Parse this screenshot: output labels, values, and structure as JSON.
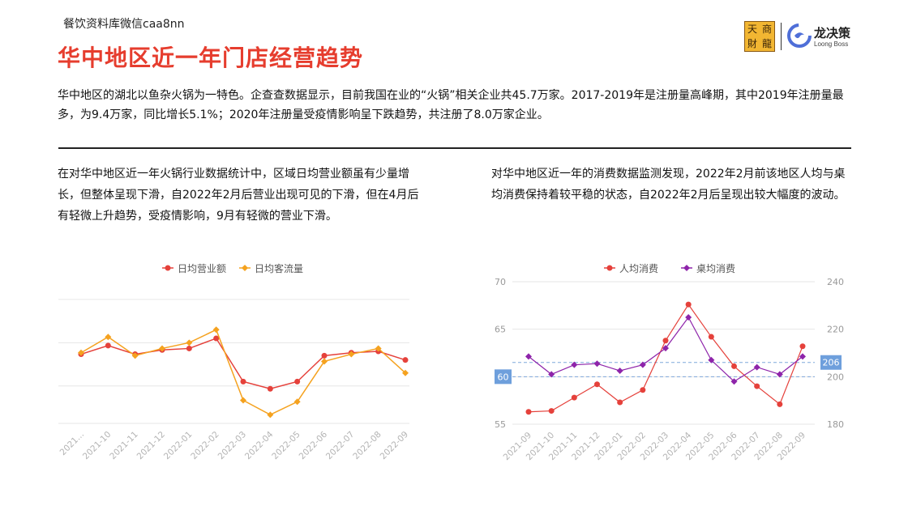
{
  "watermark": "餐饮资料库微信caa8nn",
  "title": "华中地区近一年门店经营趋势",
  "intro": "华中地区的湖北以鱼杂火锅为一特色。企查查数据显示，目前我国在业的“火锅”相关企业共45.7万家。2017-2019年是注册量高峰期，其中2019年注册量最多，为9.4万家，同比增长5.1%；2020年注册量受疫情影响呈下跌趋势，共注册了8.0万家企业。",
  "left_text": "在对华中地区近一年火锅行业数据统计中，区域日均营业额虽有少量增长，但整体呈现下滑，自2022年2月后营业出现可见的下滑，但在4月后有轻微上升趋势，受疫情影响，9月有轻微的营业下滑。",
  "right_text": "对华中地区近一年的消费数据监测发现，2022年2月前该地区人均与桌均消费保持着较平稳的状态，自2022年2月后呈现出较大幅度的波动。",
  "logo": {
    "chars": [
      "天",
      "商",
      "財",
      "龍"
    ],
    "name": "龙决策",
    "sub": "Loong Boss",
    "dragon_icon": "dragon-icon"
  },
  "colors": {
    "title": "#e63d2e",
    "series_red": "#e5413b",
    "series_orange": "#f5a21f",
    "series_purple": "#8e24aa",
    "grid": "#e6e6e6",
    "marker_line": "#7fa8dc",
    "marker_label_bg": "#6e9fdc"
  },
  "chart_data": [
    {
      "type": "line",
      "categories": [
        "2021...",
        "2021-10",
        "2021-11",
        "2021-12",
        "2022-01",
        "2022-02",
        "2022-03",
        "2022-04",
        "2022-05",
        "2022-06",
        "2022-07",
        "2022-08",
        "2022-09"
      ],
      "series": [
        {
          "name": "日均营业额",
          "color": "#e5413b",
          "marker": "circle",
          "values": [
            11.0,
            14.0,
            11.0,
            12.5,
            13.0,
            16.5,
            1.5,
            -1.0,
            1.5,
            10.5,
            11.5,
            12.0,
            9.0
          ]
        },
        {
          "name": "日均客流量",
          "color": "#f5a21f",
          "marker": "diamond",
          "values": [
            11.5,
            17.0,
            10.5,
            13.0,
            15.0,
            19.5,
            -5.0,
            -10.0,
            -5.5,
            8.5,
            11.0,
            13.0,
            4.5
          ]
        }
      ],
      "ylim": [
        -13,
        37
      ],
      "yticks": [
        0,
        15,
        30
      ],
      "show_y_labels": false,
      "legend": "top-center",
      "grid": true
    },
    {
      "type": "line",
      "categories": [
        "2021-09",
        "2021-10",
        "2021-11",
        "2021-12",
        "2022-01",
        "2022-02",
        "2022-03",
        "2022-04",
        "2022-05",
        "2022-06",
        "2022-07",
        "2022-08",
        "2022-09"
      ],
      "series": [
        {
          "name": "人均消费",
          "color": "#e5413b",
          "marker": "circle",
          "axis": "left",
          "values": [
            56.3,
            56.4,
            57.8,
            59.2,
            57.3,
            58.6,
            63.8,
            67.6,
            64.2,
            61.1,
            59.0,
            57.1,
            63.2
          ]
        },
        {
          "name": "桌均消费",
          "color": "#8e24aa",
          "marker": "diamond",
          "axis": "right",
          "values": [
            208.5,
            201.0,
            205.0,
            205.5,
            202.5,
            205.0,
            212.0,
            225.0,
            207.0,
            198.0,
            204.0,
            201.0,
            208.5
          ]
        }
      ],
      "y_left": {
        "ylim": [
          55,
          70
        ],
        "ticks": [
          55,
          60,
          65,
          70
        ]
      },
      "y_right": {
        "ylim": [
          180,
          240
        ],
        "ticks": [
          180,
          200,
          220,
          240
        ]
      },
      "ref_lines": {
        "left": 60,
        "right": 206
      },
      "legend": "top-center",
      "grid": true
    }
  ]
}
